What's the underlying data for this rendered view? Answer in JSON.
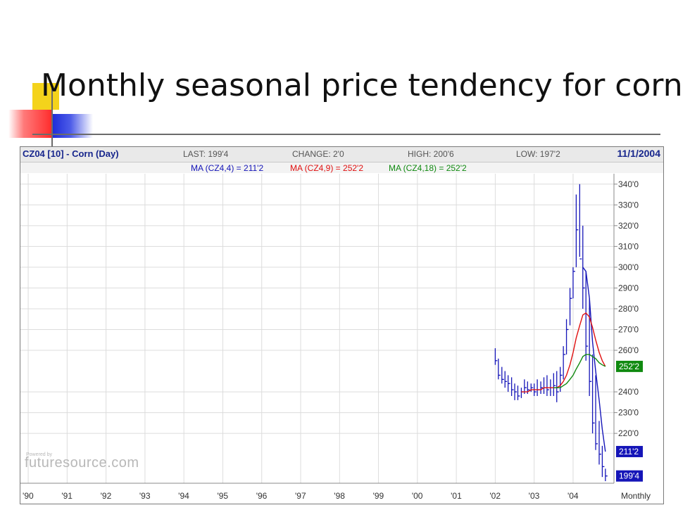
{
  "slide": {
    "title": "Monthly seasonal price tendency for corn"
  },
  "header": {
    "symbol": "CZ04 [10] - Corn (Day)",
    "last": "LAST: 199'4",
    "change": "CHANGE: 2'0",
    "high": "HIGH: 200'6",
    "low": "LOW: 197'2",
    "date": "11/1/2004"
  },
  "moving_averages": {
    "ma4": "MA (CZ4,4) = 211'2",
    "ma9": "MA (CZ4,9) = 252'2",
    "ma18": "MA (CZ4,18) = 252'2"
  },
  "branding": {
    "powered": "Powered by",
    "logo": "futuresource.com"
  },
  "colors": {
    "price": "#1515b8",
    "ma4": "#1515b8",
    "ma9": "#e01010",
    "ma18": "#108a10",
    "grid": "#dcdcdc"
  },
  "chart_data": {
    "type": "line",
    "y_ticks": [
      "340'0",
      "330'0",
      "320'0",
      "310'0",
      "300'0",
      "290'0",
      "280'0",
      "270'0",
      "260'0",
      "240'0",
      "230'0",
      "220'0"
    ],
    "y_tick_values": [
      340,
      330,
      320,
      310,
      300,
      290,
      280,
      270,
      260,
      240,
      230,
      220
    ],
    "x_ticks": [
      "'90",
      "'91",
      "'92",
      "'93",
      "'94",
      "'95",
      "'96",
      "'97",
      "'98",
      "'99",
      "'00",
      "'01",
      "'02",
      "'03",
      "'04"
    ],
    "x_tick_values": [
      1990,
      1991,
      1992,
      1993,
      1994,
      1995,
      1996,
      1997,
      1998,
      1999,
      2000,
      2001,
      2002,
      2003,
      2004
    ],
    "x_axis_label": "Monthly",
    "ylim": [
      196,
      345
    ],
    "xlim": [
      1989.8,
      2005.05
    ],
    "badges": [
      {
        "label": "252'2",
        "value": 252.25,
        "color": "#108a10"
      },
      {
        "label": "211'2",
        "value": 211.25,
        "color": "#1515b8"
      },
      {
        "label": "199'4",
        "value": 199.5,
        "color": "#1515b8"
      }
    ],
    "series": [
      {
        "kind": "ohlc",
        "color": "#1515b8",
        "x": [
          2002.0,
          2002.08,
          2002.17,
          2002.25,
          2002.33,
          2002.42,
          2002.5,
          2002.58,
          2002.67,
          2002.75,
          2002.83,
          2002.92,
          2003.0,
          2003.08,
          2003.17,
          2003.25,
          2003.33,
          2003.42,
          2003.5,
          2003.58,
          2003.67,
          2003.75,
          2003.83,
          2003.92,
          2004.0,
          2004.08,
          2004.17,
          2004.25,
          2004.33,
          2004.42,
          2004.5,
          2004.58,
          2004.67,
          2004.75,
          2004.83
        ],
        "high": [
          261,
          256,
          252,
          250,
          248,
          247,
          244,
          243,
          242,
          246,
          245,
          244,
          244,
          246,
          245,
          247,
          248,
          246,
          249,
          250,
          252,
          262,
          275,
          290,
          300,
          335,
          340,
          320,
          298,
          285,
          258,
          248,
          226,
          214,
          203
        ],
        "low": [
          253,
          246,
          244,
          242,
          240,
          238,
          236,
          236,
          237,
          239,
          239,
          240,
          238,
          238,
          239,
          239,
          238,
          238,
          238,
          235,
          240,
          246,
          258,
          272,
          285,
          300,
          305,
          280,
          255,
          238,
          220,
          212,
          205,
          199,
          197
        ],
        "close": [
          255,
          248,
          246,
          245,
          244,
          241,
          240,
          238,
          240,
          242,
          241,
          242,
          240,
          241,
          242,
          242,
          241,
          242,
          243,
          240,
          248,
          258,
          270,
          285,
          298,
          318,
          304,
          290,
          262,
          245,
          225,
          215,
          210,
          204,
          199.5
        ]
      },
      {
        "name": "MA (CZ4,4)",
        "kind": "line",
        "color": "#1515b8",
        "x": [
          2004.25,
          2004.33,
          2004.42,
          2004.5,
          2004.58,
          2004.67,
          2004.75,
          2004.83
        ],
        "y": [
          300,
          298,
          285,
          264,
          250,
          236,
          222,
          211.25
        ]
      },
      {
        "name": "MA (CZ4,9)",
        "kind": "line",
        "color": "#e01010",
        "x": [
          2002.67,
          2002.75,
          2002.83,
          2002.92,
          2003.0,
          2003.08,
          2003.17,
          2003.25,
          2003.33,
          2003.42,
          2003.5,
          2003.58,
          2003.67,
          2003.75,
          2003.83,
          2003.92,
          2004.0,
          2004.08,
          2004.17,
          2004.25,
          2004.33,
          2004.42,
          2004.5,
          2004.58,
          2004.67,
          2004.75,
          2004.83
        ],
        "y": [
          240,
          240,
          240,
          241,
          241,
          241,
          241,
          242,
          242,
          242,
          242,
          242,
          243,
          245,
          248,
          253,
          259,
          266,
          272,
          277,
          278,
          276,
          271,
          265,
          259,
          255,
          252.25
        ]
      },
      {
        "name": "MA (CZ4,18)",
        "kind": "line",
        "color": "#108a10",
        "x": [
          2003.5,
          2003.58,
          2003.67,
          2003.75,
          2003.83,
          2003.92,
          2004.0,
          2004.08,
          2004.17,
          2004.25,
          2004.33,
          2004.42,
          2004.5,
          2004.58,
          2004.67,
          2004.75,
          2004.83
        ],
        "y": [
          242,
          242,
          242,
          243,
          244,
          246,
          248,
          251,
          254,
          257,
          258,
          258,
          257,
          256,
          254,
          253,
          252.25
        ]
      }
    ]
  }
}
